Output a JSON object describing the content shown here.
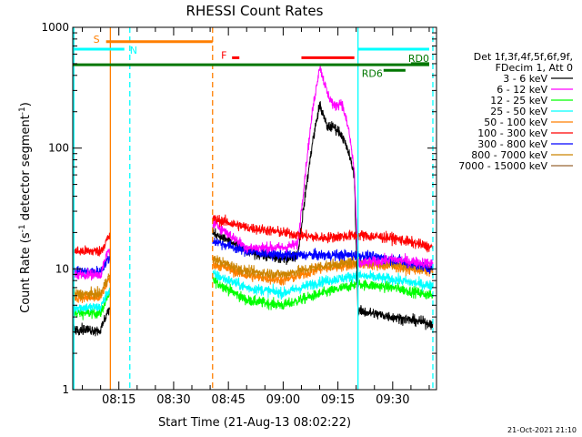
{
  "chart_data": {
    "type": "line",
    "title": "RHESSI Count Rates",
    "xlabel": "Start Time (21-Aug-13 08:02:22)",
    "ylabel_main": "Count Rate (s",
    "ylabel_sup1": "-1",
    "ylabel_mid": " detector segment",
    "ylabel_sup2": "-1",
    "ylabel_end": ")",
    "yscale": "log",
    "xlim": [
      "08:02:22",
      "09:42:00"
    ],
    "ylim": [
      1,
      1000
    ],
    "x_ticks": [
      "08:15",
      "08:30",
      "08:45",
      "09:00",
      "09:15",
      "09:30"
    ],
    "y_ticks": [
      "1",
      "10",
      "100",
      "1000"
    ],
    "legend": {
      "placement": "right",
      "header1": "Det 1f,3f,4f,5f,6f,9f,",
      "header2": "FDecim 1, Att 0",
      "entries": [
        {
          "label": "3 - 6 keV",
          "color": "#000000"
        },
        {
          "label": "6 - 12 keV",
          "color": "#ff00ff"
        },
        {
          "label": "12 - 25 keV",
          "color": "#00ff00"
        },
        {
          "label": "25 - 50 keV",
          "color": "#00ffff"
        },
        {
          "label": "50 - 100 keV",
          "color": "#ff7f00"
        },
        {
          "label": "100 - 300 keV",
          "color": "#ff0000"
        },
        {
          "label": "300 - 800 keV",
          "color": "#0000ff"
        },
        {
          "label": "800 - 7000 keV",
          "color": "#cc8400"
        },
        {
          "label": "7000 - 15000 keV",
          "color": "#996633"
        }
      ]
    },
    "data_gaps": [
      [
        "08:12:40",
        "08:40:40"
      ]
    ],
    "series": [
      {
        "name": "3 - 6 keV",
        "color": "#000000",
        "x": [
          "08:02:30",
          "08:10:00",
          "08:12:00",
          "08:41:00",
          "08:50:00",
          "09:00:00",
          "09:04:00",
          "09:06:00",
          "09:08:00",
          "09:10:00",
          "09:12:00",
          "09:14:00",
          "09:16:00",
          "09:18:00",
          "09:19:30",
          "09:20:30",
          "09:30:00",
          "09:41:00"
        ],
        "y": [
          3.2,
          3.1,
          4.5,
          20,
          14,
          12,
          13,
          40,
          110,
          230,
          150,
          150,
          130,
          90,
          60,
          4.5,
          4,
          3.5
        ]
      },
      {
        "name": "6 - 12 keV",
        "color": "#ff00ff",
        "x": [
          "08:02:30",
          "08:10:00",
          "08:12:00",
          "08:41:00",
          "08:50:00",
          "09:00:00",
          "09:04:00",
          "09:06:00",
          "09:08:00",
          "09:10:00",
          "09:12:00",
          "09:14:00",
          "09:16:00",
          "09:18:00",
          "09:19:30",
          "09:20:30",
          "09:30:00",
          "09:41:00"
        ],
        "y": [
          9,
          9,
          14,
          24,
          15,
          15,
          16,
          60,
          200,
          480,
          290,
          220,
          240,
          140,
          65,
          11,
          12,
          11
        ]
      },
      {
        "name": "12 - 25 keV",
        "color": "#00ff00",
        "x": [
          "08:02:30",
          "08:10:00",
          "08:12:00",
          "08:41:00",
          "08:50:00",
          "09:00:00",
          "09:10:00",
          "09:20:30",
          "09:30:00",
          "09:41:00"
        ],
        "y": [
          4.3,
          4.3,
          6,
          8,
          5.5,
          5,
          6.2,
          7.5,
          7,
          6
        ]
      },
      {
        "name": "25 - 50 keV",
        "color": "#00ffff",
        "x": [
          "08:02:30",
          "08:10:00",
          "08:12:00",
          "08:41:00",
          "08:50:00",
          "09:00:00",
          "09:10:00",
          "09:20:30",
          "09:30:00",
          "09:41:00"
        ],
        "y": [
          4.8,
          4.8,
          6.5,
          9,
          7,
          6.3,
          7.8,
          8.8,
          8.2,
          7.2
        ]
      },
      {
        "name": "50 - 100 keV",
        "color": "#ff7f00",
        "x": [
          "08:02:30",
          "08:10:00",
          "08:12:00",
          "08:41:00",
          "08:50:00",
          "09:00:00",
          "09:10:00",
          "09:20:30",
          "09:30:00",
          "09:41:00"
        ],
        "y": [
          5.8,
          5.8,
          8,
          11,
          8.8,
          8,
          10,
          11,
          10.5,
          9.5
        ]
      },
      {
        "name": "100 - 300 keV",
        "color": "#ff0000",
        "x": [
          "08:02:30",
          "08:10:00",
          "08:12:00",
          "08:41:00",
          "08:50:00",
          "09:00:00",
          "09:10:00",
          "09:20:30",
          "09:30:00",
          "09:41:00"
        ],
        "y": [
          14,
          14,
          18,
          26,
          22,
          20,
          18,
          19,
          18,
          15
        ]
      },
      {
        "name": "300 - 800 keV",
        "color": "#0000ff",
        "x": [
          "08:02:30",
          "08:10:00",
          "08:12:00",
          "08:41:00",
          "08:50:00",
          "09:00:00",
          "09:10:00",
          "09:20:30",
          "09:30:00",
          "09:41:00"
        ],
        "y": [
          9.5,
          9.5,
          12,
          17,
          14,
          13,
          13,
          13,
          12,
          10
        ]
      },
      {
        "name": "800 - 7000 keV",
        "color": "#cc8400",
        "x": [
          "08:02:30",
          "08:10:00",
          "08:12:00",
          "08:41:00",
          "08:50:00",
          "09:00:00",
          "09:10:00",
          "09:20:30",
          "09:30:00",
          "09:41:00"
        ],
        "y": [
          6.2,
          6.2,
          8.5,
          12,
          9.5,
          9,
          10.5,
          11.5,
          11,
          10
        ]
      }
    ],
    "annotations": [
      {
        "label": "S",
        "color": "#ff7f00",
        "x0": "08:11:30",
        "x1": "08:40:40",
        "y": 760
      },
      {
        "label": "N",
        "color": "#00ffff",
        "x0": "08:02:22",
        "x1": "08:16:30",
        "y": 660
      },
      {
        "label": "F",
        "color": "#ff0000",
        "x0": "08:46:00",
        "x1": "08:48:00",
        "y": 560
      },
      {
        "label": "",
        "color": "#ff0000",
        "x0": "09:05:00",
        "x1": "09:19:30",
        "y": 560
      },
      {
        "label": "",
        "color": "#007700",
        "x0": "08:02:22",
        "x1": "09:40:00",
        "y": 490
      },
      {
        "label": "RD0",
        "color": "#007700",
        "x0": "09:35:00",
        "x1": "09:40:00",
        "y": 500
      },
      {
        "label": "RD6",
        "color": "#007700",
        "x0": "09:27:30",
        "x1": "09:33:30",
        "y": 440
      },
      {
        "label": "",
        "color": "#00ffff",
        "x0": "09:20:30",
        "x1": "09:40:00",
        "y": 660
      }
    ],
    "vlines": [
      {
        "x": "08:12:40",
        "color": "#ff7f00",
        "style": "solid"
      },
      {
        "x": "08:02:40",
        "color": "#00ffff",
        "style": "solid"
      },
      {
        "x": "08:18:00",
        "color": "#00ffff",
        "style": "dashed"
      },
      {
        "x": "08:40:40",
        "color": "#ff7f00",
        "style": "dashed"
      },
      {
        "x": "09:20:30",
        "color": "#00ffff",
        "style": "solid"
      },
      {
        "x": "09:41:00",
        "color": "#00ffff",
        "style": "dashed"
      }
    ]
  },
  "footer": {
    "timestamp": "21-Oct-2021 21:10"
  }
}
